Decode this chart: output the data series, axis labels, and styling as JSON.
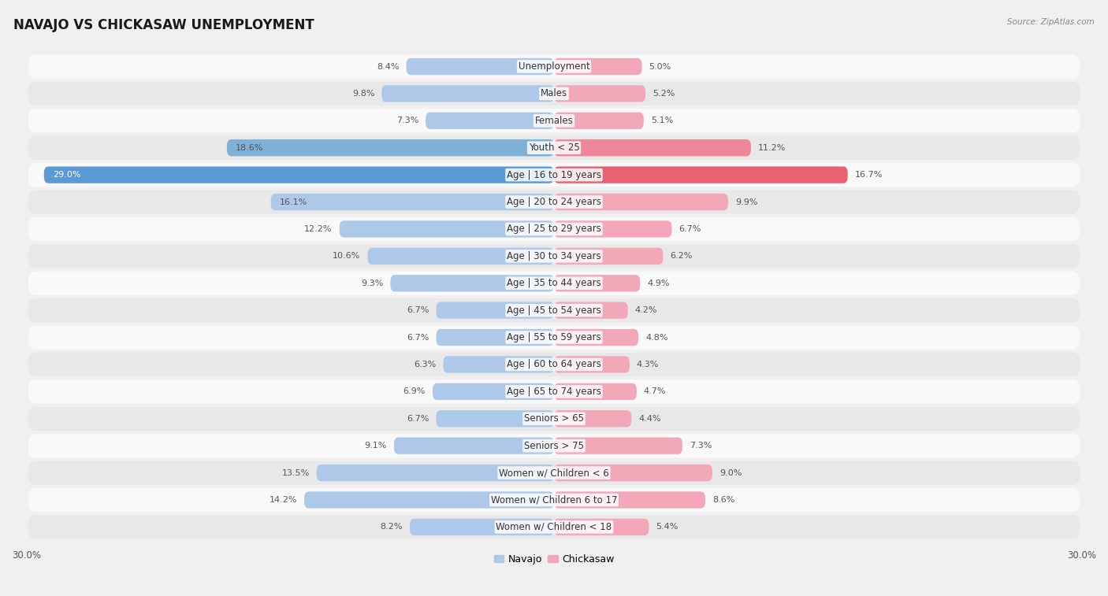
{
  "title": "NAVAJO VS CHICKASAW UNEMPLOYMENT",
  "source": "Source: ZipAtlas.com",
  "categories": [
    "Unemployment",
    "Males",
    "Females",
    "Youth < 25",
    "Age | 16 to 19 years",
    "Age | 20 to 24 years",
    "Age | 25 to 29 years",
    "Age | 30 to 34 years",
    "Age | 35 to 44 years",
    "Age | 45 to 54 years",
    "Age | 55 to 59 years",
    "Age | 60 to 64 years",
    "Age | 65 to 74 years",
    "Seniors > 65",
    "Seniors > 75",
    "Women w/ Children < 6",
    "Women w/ Children 6 to 17",
    "Women w/ Children < 18"
  ],
  "navajo": [
    8.4,
    9.8,
    7.3,
    18.6,
    29.0,
    16.1,
    12.2,
    10.6,
    9.3,
    6.7,
    6.7,
    6.3,
    6.9,
    6.7,
    9.1,
    13.5,
    14.2,
    8.2
  ],
  "chickasaw": [
    5.0,
    5.2,
    5.1,
    11.2,
    16.7,
    9.9,
    6.7,
    6.2,
    4.9,
    4.2,
    4.8,
    4.3,
    4.7,
    4.4,
    7.3,
    9.0,
    8.6,
    5.4
  ],
  "navajo_color": "#adc8e8",
  "chickasaw_color": "#f2a8b8",
  "navajo_strong_color": "#5b9bd5",
  "chickasaw_strong_color": "#e96070",
  "axis_max": 30.0,
  "bg_color": "#f0f0f0",
  "row_bg_color": "#f9f9f9",
  "row_stripe_color": "#e8e8e8",
  "label_fontsize": 8.5,
  "title_fontsize": 12,
  "value_fontsize": 8.0,
  "strong_indices": [
    4
  ],
  "medium_indices": [
    3
  ]
}
